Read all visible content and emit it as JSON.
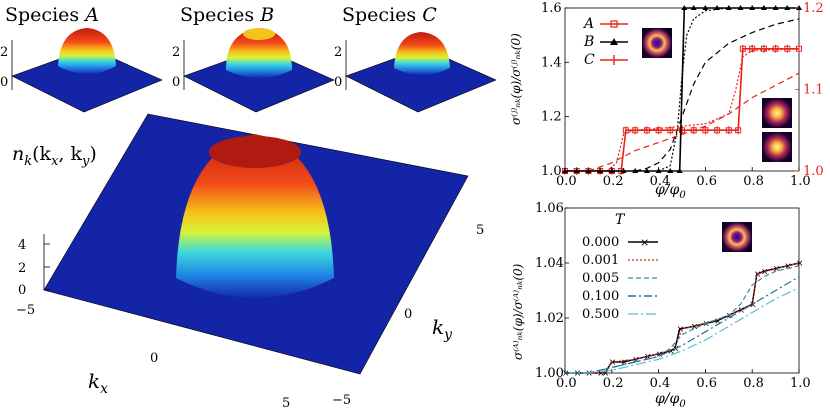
{
  "chart_data": [
    {
      "type": "surface",
      "panel": "species-insets",
      "titles": [
        "Species ",
        "Species ",
        "Species "
      ],
      "title_vars": [
        "A",
        "B",
        "C"
      ],
      "zticks": [
        "2",
        "0"
      ]
    },
    {
      "type": "surface",
      "panel": "main-surface",
      "zlabel_f": "n",
      "zlabel_sub": "k",
      "zlabel_args": "(k",
      "zlabel_args2": ", k",
      "zlabel_close": ")",
      "zticks": [
        "4",
        "2",
        "0"
      ],
      "xlabel": "k",
      "xlabel_sub": "x",
      "ylabel": "k",
      "ylabel_sub": "y",
      "xticks": [
        "−5",
        "0",
        "5"
      ],
      "yticks": [
        "5",
        "0",
        "−5"
      ]
    },
    {
      "type": "line",
      "panel": "top-right",
      "xlabel": "φ/φ",
      "xlabel_sub": "0",
      "xlim": [
        0,
        1
      ],
      "ylim": [
        1.0,
        1.6
      ],
      "ylim_right": [
        1.0,
        1.2
      ],
      "xticks": [
        "0.0",
        "0.2",
        "0.4",
        "0.6",
        "0.8",
        "1.0"
      ],
      "yticks": [
        "1.6",
        "1.4",
        "1.2",
        "1.0"
      ],
      "yticks_right": [
        "1.2",
        "1.1",
        "1.0"
      ],
      "legend": [
        "A",
        "B",
        "C"
      ],
      "series": [
        {
          "name": "A",
          "color": "#e8231c",
          "axis": "right",
          "x": [
            0,
            0.05,
            0.1,
            0.15,
            0.2,
            0.24,
            0.26,
            0.3,
            0.35,
            0.4,
            0.45,
            0.5,
            0.55,
            0.6,
            0.65,
            0.7,
            0.74,
            0.76,
            0.8,
            0.85,
            0.9,
            0.95,
            1.0
          ],
          "y": [
            1.0,
            1.0,
            1.0,
            1.0,
            1.0,
            1.0,
            1.05,
            1.05,
            1.05,
            1.05,
            1.05,
            1.05,
            1.05,
            1.05,
            1.05,
            1.05,
            1.05,
            1.15,
            1.15,
            1.15,
            1.15,
            1.15,
            1.15
          ]
        },
        {
          "name": "B",
          "color": "#000000",
          "axis": "left",
          "x": [
            0,
            0.05,
            0.1,
            0.15,
            0.2,
            0.25,
            0.3,
            0.35,
            0.4,
            0.45,
            0.49,
            0.51,
            0.55,
            0.6,
            0.65,
            0.7,
            0.75,
            0.8,
            0.85,
            0.9,
            0.95,
            1.0
          ],
          "y": [
            1.0,
            1.0,
            1.0,
            1.0,
            1.0,
            1.0,
            1.0,
            1.0,
            1.0,
            1.0,
            1.0,
            1.6,
            1.6,
            1.6,
            1.6,
            1.6,
            1.6,
            1.6,
            1.6,
            1.6,
            1.6,
            1.6
          ]
        }
      ],
      "thermal_black_dotted": {
        "x": [
          0.4,
          0.45,
          0.48,
          0.5,
          0.52,
          0.55,
          0.6,
          0.7,
          0.8,
          1.0
        ],
        "y": [
          1.0,
          1.02,
          1.15,
          1.35,
          1.5,
          1.56,
          1.59,
          1.6,
          1.6,
          1.6
        ]
      },
      "thermal_black_dashed": {
        "x": [
          0.3,
          0.35,
          0.4,
          0.45,
          0.5,
          0.55,
          0.6,
          0.7,
          0.8,
          0.9,
          1.0
        ],
        "y": [
          1.0,
          1.01,
          1.03,
          1.08,
          1.2,
          1.32,
          1.4,
          1.47,
          1.51,
          1.54,
          1.56
        ]
      },
      "thermal_red_dotted": {
        "x": [
          0.18,
          0.22,
          0.25,
          0.3,
          0.4,
          0.5,
          0.6,
          0.7,
          0.73,
          0.76,
          0.8,
          1.0
        ],
        "y": [
          1.0,
          1.01,
          1.045,
          1.05,
          1.052,
          1.055,
          1.058,
          1.07,
          1.1,
          1.14,
          1.148,
          1.15
        ]
      },
      "thermal_red_dashed": {
        "x": [
          0.1,
          0.2,
          0.3,
          0.4,
          0.5,
          0.6,
          0.7,
          0.8,
          0.9,
          1.0
        ],
        "y": [
          1.0,
          1.01,
          1.025,
          1.035,
          1.045,
          1.055,
          1.07,
          1.09,
          1.105,
          1.12
        ]
      }
    },
    {
      "type": "line",
      "panel": "bottom-right",
      "xlabel": "φ/φ",
      "xlabel_sub": "0",
      "xlim": [
        0,
        1
      ],
      "ylim": [
        1.0,
        1.06
      ],
      "xticks": [
        "0.0",
        "0.2",
        "0.4",
        "0.6",
        "0.8",
        "1.0"
      ],
      "yticks": [
        "1.06",
        "1.04",
        "1.02",
        "1.00"
      ],
      "legend_title": "T",
      "legend": [
        "0.000",
        "0.001",
        "0.005",
        "0.100",
        "0.500"
      ],
      "series": [
        {
          "name": "0.000",
          "color": "#000000",
          "x": [
            0,
            0.05,
            0.1,
            0.15,
            0.17,
            0.2,
            0.25,
            0.3,
            0.35,
            0.4,
            0.45,
            0.47,
            0.49,
            0.55,
            0.6,
            0.65,
            0.7,
            0.75,
            0.8,
            0.82,
            0.85,
            0.9,
            0.95,
            1.0
          ],
          "y": [
            1.0,
            1.0,
            1.0,
            1.0,
            1.0,
            1.004,
            1.004,
            1.005,
            1.006,
            1.007,
            1.008,
            1.009,
            1.016,
            1.017,
            1.018,
            1.019,
            1.021,
            1.023,
            1.025,
            1.036,
            1.037,
            1.038,
            1.039,
            1.04
          ]
        },
        {
          "name": "0.001",
          "color": "#e8231c",
          "x": [
            0,
            0.1,
            0.17,
            0.2,
            0.3,
            0.4,
            0.47,
            0.5,
            0.6,
            0.7,
            0.8,
            0.82,
            0.9,
            1.0
          ],
          "y": [
            1.0,
            1.0,
            1.0,
            1.004,
            1.005,
            1.007,
            1.009,
            1.016,
            1.018,
            1.021,
            1.025,
            1.036,
            1.038,
            1.04
          ]
        },
        {
          "name": "0.005",
          "color": "#2e8fa8",
          "x": [
            0,
            0.1,
            0.2,
            0.3,
            0.4,
            0.45,
            0.5,
            0.55,
            0.6,
            0.7,
            0.75,
            0.8,
            0.85,
            0.9,
            1.0
          ],
          "y": [
            1.0,
            1.0,
            1.002,
            1.004,
            1.006,
            1.009,
            1.014,
            1.016,
            1.018,
            1.021,
            1.025,
            1.032,
            1.035,
            1.037,
            1.039
          ]
        },
        {
          "name": "0.100",
          "color": "#1f6f9a",
          "x": [
            0,
            0.1,
            0.2,
            0.3,
            0.4,
            0.5,
            0.6,
            0.7,
            0.8,
            0.9,
            1.0
          ],
          "y": [
            1.0,
            1.0,
            1.002,
            1.004,
            1.006,
            1.01,
            1.015,
            1.02,
            1.025,
            1.03,
            1.035
          ]
        },
        {
          "name": "0.500",
          "color": "#5fb7d4",
          "x": [
            0,
            0.1,
            0.2,
            0.3,
            0.4,
            0.5,
            0.6,
            0.7,
            0.8,
            0.9,
            1.0
          ],
          "y": [
            1.0,
            1.0,
            1.001,
            1.003,
            1.005,
            1.008,
            1.012,
            1.017,
            1.022,
            1.027,
            1.031
          ]
        }
      ]
    }
  ]
}
